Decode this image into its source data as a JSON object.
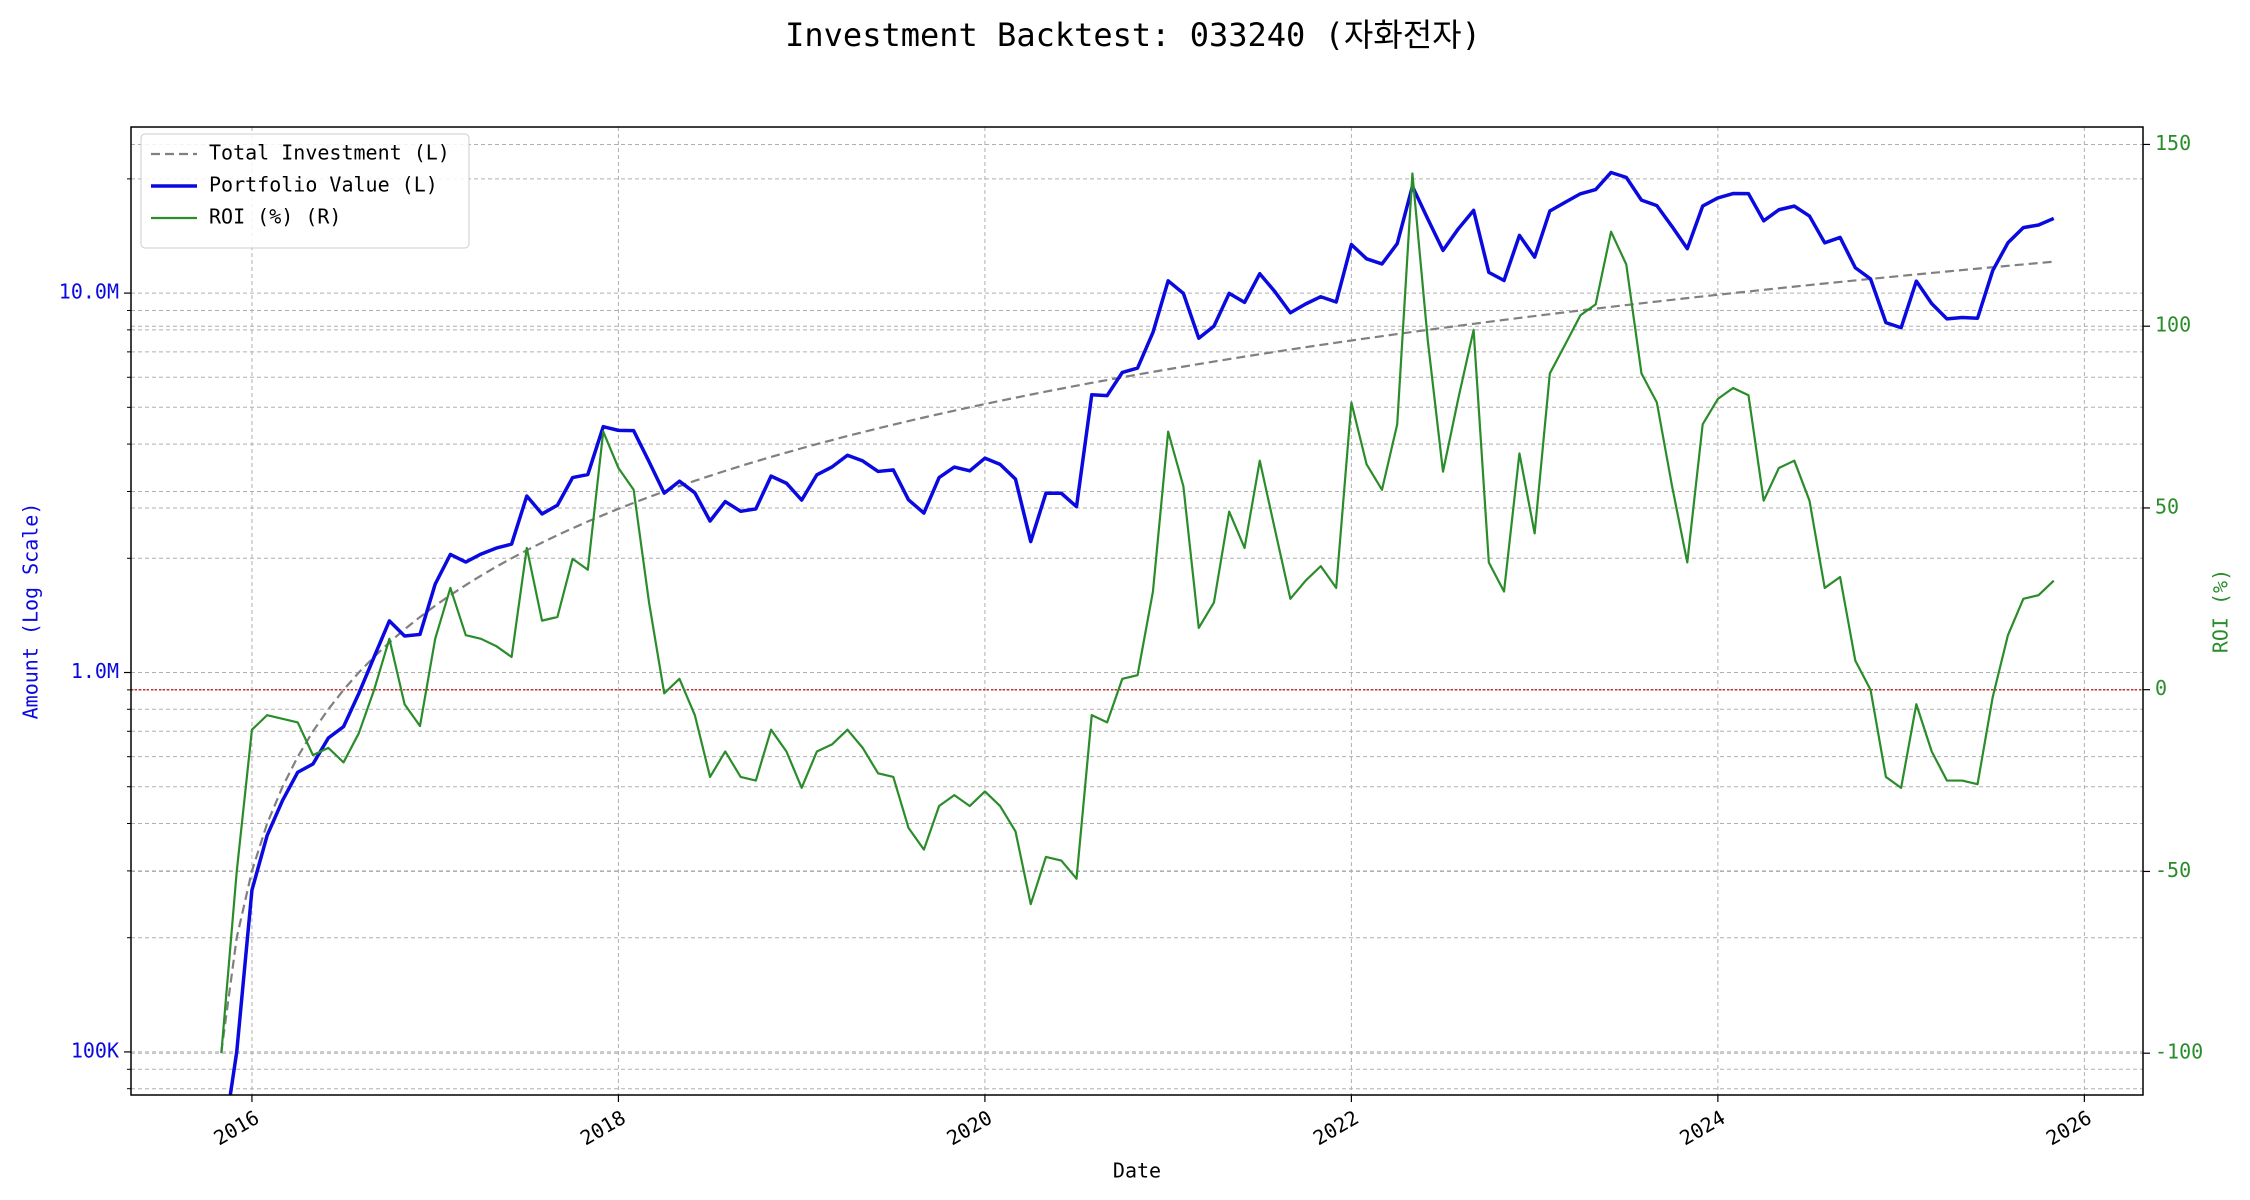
{
  "chart_data": {
    "type": "line",
    "title": "Investment Backtest: 033240 (자화전자)",
    "xlabel": "Date",
    "ylabel": "Amount (Log Scale)",
    "y2label": "ROI (%)",
    "yscale": "log",
    "grid": true,
    "legend": "upper left",
    "xlim": [
      2015.34,
      2026.32
    ],
    "xticks": [
      2016,
      2018,
      2020,
      2022,
      2024,
      2026
    ],
    "ylim": [
      77000,
      27400000
    ],
    "yticks": [
      {
        "value": 100000,
        "label": "100K"
      },
      {
        "value": 1000000,
        "label": "1.0M"
      },
      {
        "value": 10000000,
        "label": "10.0M"
      }
    ],
    "yminorticks": [
      80000,
      90000,
      200000,
      300000,
      400000,
      500000,
      600000,
      700000,
      800000,
      900000,
      2000000,
      3000000,
      4000000,
      5000000,
      6000000,
      7000000,
      8000000,
      9000000,
      20000000
    ],
    "y2lim": [
      -111.5,
      154.8
    ],
    "y2ticks": [
      -100,
      -50,
      0,
      50,
      100,
      150
    ],
    "reference_line": {
      "axis": "y2",
      "value": 0,
      "color": "#d62728"
    },
    "x": [
      2015.833,
      2015.917,
      2016.0,
      2016.083,
      2016.167,
      2016.25,
      2016.333,
      2016.417,
      2016.5,
      2016.583,
      2016.667,
      2016.75,
      2016.833,
      2016.917,
      2017.0,
      2017.083,
      2017.167,
      2017.25,
      2017.333,
      2017.417,
      2017.5,
      2017.583,
      2017.667,
      2017.75,
      2017.833,
      2017.917,
      2018.0,
      2018.083,
      2018.167,
      2018.25,
      2018.333,
      2018.417,
      2018.5,
      2018.583,
      2018.667,
      2018.75,
      2018.833,
      2018.917,
      2019.0,
      2019.083,
      2019.167,
      2019.25,
      2019.333,
      2019.417,
      2019.5,
      2019.583,
      2019.667,
      2019.75,
      2019.833,
      2019.917,
      2020.0,
      2020.083,
      2020.167,
      2020.25,
      2020.333,
      2020.417,
      2020.5,
      2020.583,
      2020.667,
      2020.75,
      2020.833,
      2020.917,
      2021.0,
      2021.083,
      2021.167,
      2021.25,
      2021.333,
      2021.417,
      2021.5,
      2021.583,
      2021.667,
      2021.75,
      2021.833,
      2021.917,
      2022.0,
      2022.083,
      2022.167,
      2022.25,
      2022.333,
      2022.417,
      2022.5,
      2022.583,
      2022.667,
      2022.75,
      2022.833,
      2022.917,
      2023.0,
      2023.083,
      2023.167,
      2023.25,
      2023.333,
      2023.417,
      2023.5,
      2023.583,
      2023.667,
      2023.75,
      2023.833,
      2023.917,
      2024.0,
      2024.083,
      2024.167,
      2024.25,
      2024.333,
      2024.417,
      2024.5,
      2024.583,
      2024.667,
      2024.75,
      2024.833,
      2024.917,
      2025.0,
      2025.083,
      2025.167,
      2025.25,
      2025.333,
      2025.417,
      2025.5,
      2025.583,
      2025.667,
      2025.75,
      2025.833
    ],
    "series": [
      {
        "name": "Total Investment (L)",
        "color": "#808080",
        "dash": true,
        "values": [
          100000,
          200000,
          300000,
          400000,
          500000,
          600000,
          700000,
          800000,
          900000,
          1000000,
          1100000,
          1200000,
          1300000,
          1400000,
          1500000,
          1600000,
          1700000,
          1800000,
          1900000,
          2000000,
          2100000,
          2200000,
          2300000,
          2400000,
          2500000,
          2600000,
          2700000,
          2800000,
          2900000,
          3000000,
          3100000,
          3200000,
          3300000,
          3400000,
          3500000,
          3600000,
          3700000,
          3800000,
          3900000,
          4000000,
          4100000,
          4200000,
          4300000,
          4400000,
          4500000,
          4600000,
          4700000,
          4800000,
          4900000,
          5000000,
          5100000,
          5200000,
          5300000,
          5400000,
          5500000,
          5600000,
          5700000,
          5800000,
          5900000,
          6000000,
          6100000,
          6200000,
          6300000,
          6400000,
          6500000,
          6600000,
          6700000,
          6800000,
          6900000,
          7000000,
          7100000,
          7200000,
          7300000,
          7400000,
          7500000,
          7600000,
          7700000,
          7800000,
          7900000,
          8000000,
          8100000,
          8200000,
          8300000,
          8400000,
          8500000,
          8600000,
          8700000,
          8800000,
          8900000,
          9000000,
          9100000,
          9200000,
          9300000,
          9400000,
          9500000,
          9600000,
          9700000,
          9800000,
          9900000,
          10000000,
          10100000,
          10200000,
          10300000,
          10400000,
          10500000,
          10600000,
          10700000,
          10800000,
          10900000,
          11000000,
          11100000,
          11200000,
          11300000,
          11400000,
          11500000,
          11600000,
          11700000,
          11800000,
          11900000,
          12000000,
          12100000
        ]
      },
      {
        "name": "Portfolio Value (L)",
        "color": "#0a0ae0",
        "width": 3.5,
        "values": [
          0,
          100000,
          267000,
          372000,
          460000,
          546000,
          574000,
          672000,
          720000,
          880000,
          1100000,
          1368000,
          1248000,
          1260000,
          1710000,
          2048000,
          1955000,
          2052000,
          2128000,
          2180000,
          2919000,
          2618000,
          2760000,
          3264000,
          3325000,
          4446000,
          4347000,
          4340000,
          3596000,
          2970000,
          3193000,
          2976000,
          2508000,
          2822000,
          2660000,
          2700000,
          3293000,
          3154000,
          2847000,
          3320000,
          3485000,
          3738000,
          3612000,
          3388000,
          3420000,
          2852000,
          2632000,
          3264000,
          3479000,
          3400000,
          3672000,
          3536000,
          3233000,
          2214000,
          2970000,
          2968000,
          2736000,
          5394000,
          5369000,
          6180000,
          6344000,
          7874000,
          10773000,
          9984000,
          7605000,
          8184000,
          9983000,
          9452000,
          11247000,
          10080000,
          8875000,
          9360000,
          9782000,
          9472000,
          13425000,
          12312000,
          11935000,
          13494000,
          19118000,
          15680000,
          12960000,
          14760000,
          16517000,
          11340000,
          10795000,
          14190000,
          12441000,
          16456000,
          17355000,
          18270000,
          18746000,
          20792000,
          20181000,
          17578000,
          17005000,
          14976000,
          13095000,
          16954000,
          17820000,
          18300000,
          18281000,
          15504000,
          16583000,
          16952000,
          15960000,
          13568000,
          14017000,
          11664000,
          10900000,
          8360000,
          8103000,
          10752000,
          9379000,
          8550000,
          8625000,
          8584000,
          11466000,
          13570000,
          14875000,
          15120000,
          15730000
        ]
      },
      {
        "name": "ROI (%) (R)",
        "color": "#2a8c2a",
        "axis": "y2",
        "values": [
          -100,
          -50,
          -11,
          -7,
          -8,
          -9,
          -18,
          -16,
          -20,
          -12,
          0,
          14,
          -4,
          -10,
          14,
          28,
          15,
          14,
          12,
          9,
          39,
          19,
          20,
          36,
          33,
          71,
          61,
          55,
          24,
          -1,
          3,
          -7,
          -24,
          -17,
          -24,
          -25,
          -11,
          -17,
          -27,
          -17,
          -15,
          -11,
          -16,
          -23,
          -24,
          -38,
          -44,
          -32,
          -29,
          -32,
          -28,
          -32,
          -39,
          -59,
          -46,
          -47,
          -52,
          -7,
          -9,
          3,
          4,
          27,
          71,
          56,
          17,
          24,
          49,
          39,
          63,
          44,
          25,
          30,
          34,
          28,
          79,
          62,
          55,
          73,
          142,
          96,
          60,
          80,
          99,
          35,
          27,
          65,
          43,
          87,
          95,
          103,
          106,
          126,
          117,
          87,
          79,
          56,
          35,
          73,
          80,
          83,
          81,
          52,
          61,
          63,
          52,
          28,
          31,
          8,
          0,
          -24,
          -27,
          -4,
          -17,
          -25,
          -25,
          -26,
          -2,
          15,
          25,
          26,
          30
        ]
      }
    ]
  }
}
